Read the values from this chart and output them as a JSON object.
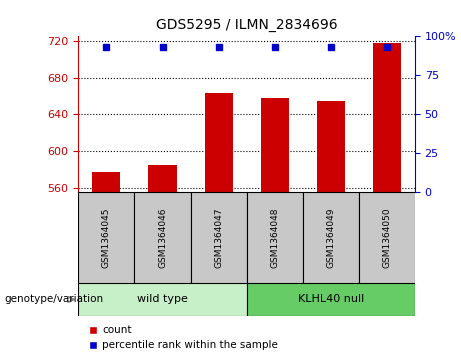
{
  "title": "GDS5295 / ILMN_2834696",
  "samples": [
    "GSM1364045",
    "GSM1364046",
    "GSM1364047",
    "GSM1364048",
    "GSM1364049",
    "GSM1364050"
  ],
  "counts": [
    577,
    585,
    663,
    658,
    655,
    718
  ],
  "percentile_ranks": [
    93,
    93,
    93,
    93,
    93,
    93
  ],
  "bar_color": "#CC0000",
  "percentile_color": "#0000CC",
  "ylim_left": [
    555,
    725
  ],
  "ylim_right": [
    0,
    100
  ],
  "yticks_left": [
    560,
    600,
    640,
    680,
    720
  ],
  "yticks_right": [
    0,
    25,
    50,
    75,
    100
  ],
  "ytick_right_labels": [
    "0",
    "25",
    "50",
    "75",
    "100%"
  ],
  "groups": [
    {
      "label": "wild type",
      "color": "#C8F0C8"
    },
    {
      "label": "KLHL40 null",
      "color": "#66CC66"
    }
  ],
  "group_label_prefix": "genotype/variation",
  "legend_count_label": "count",
  "legend_percentile_label": "percentile rank within the sample",
  "background_color": "#FFFFFF",
  "plot_bg_color": "#FFFFFF",
  "grid_color": "#000000",
  "tick_label_color_left": "#CC0000",
  "tick_label_color_right": "#0000CC",
  "sample_box_color": "#C8C8C8",
  "bar_width": 0.5,
  "base_value": 555
}
